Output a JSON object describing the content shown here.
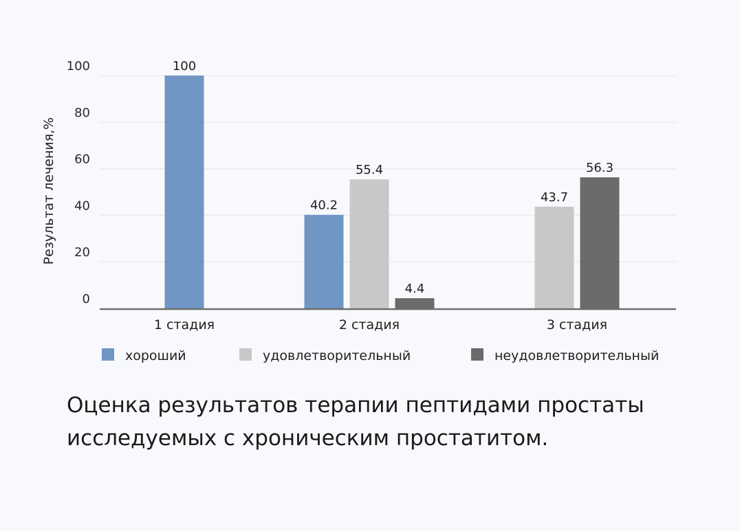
{
  "chart_data": {
    "type": "bar",
    "title": "",
    "xlabel": "",
    "ylabel": "Результат лечения,%",
    "ylim": [
      0,
      100
    ],
    "yticks": [
      0,
      20,
      40,
      60,
      80,
      100
    ],
    "grid": true,
    "legend_position": "bottom",
    "categories": [
      "1 стадия",
      "2 стадия",
      "3 стадия"
    ],
    "series": [
      {
        "name": "хороший",
        "color": "#7096c4",
        "values": [
          100,
          40.2,
          null
        ]
      },
      {
        "name": "удовлетворительный",
        "color": "#c8c8c8",
        "values": [
          null,
          55.4,
          43.7
        ]
      },
      {
        "name": "неудовлетворительный",
        "color": "#6b6b6b",
        "values": [
          null,
          4.4,
          56.3
        ]
      }
    ]
  },
  "caption": "Оценка результатов терапии пептидами простаты исследуемых с хроническим простатитом."
}
